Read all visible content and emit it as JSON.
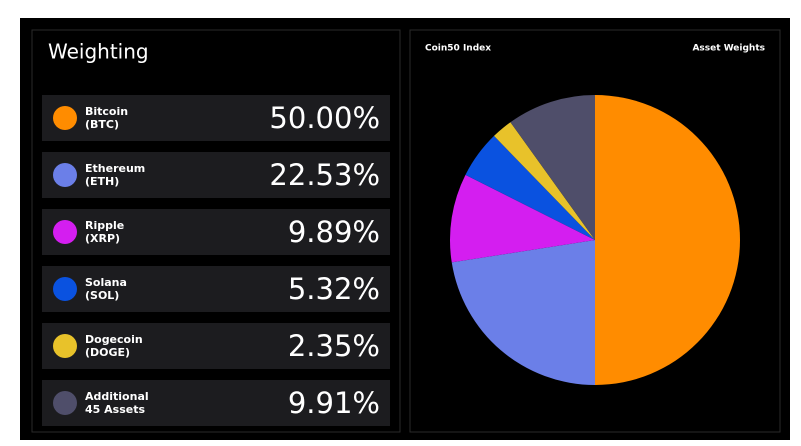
{
  "heading": "Weighting",
  "chart_data": {
    "type": "pie",
    "title": "Coin50 Index",
    "subtitle": "Asset Weights",
    "categories": [
      "Bitcoin",
      "Ethereum",
      "Ripple",
      "Solana",
      "Dogecoin",
      "Additional"
    ],
    "category_sublabels": [
      "(BTC)",
      "(ETH)",
      "(XRP)",
      "(SOL)",
      "(DOGE)",
      "45 Assets"
    ],
    "values": [
      50.0,
      22.53,
      9.89,
      5.32,
      2.35,
      9.91
    ],
    "value_labels": [
      "50.00%",
      "22.53%",
      "9.89%",
      "5.32%",
      "2.35%",
      "9.91%"
    ],
    "colors": [
      "#ff8c00",
      "#6b7fe8",
      "#d41ef0",
      "#0a52e0",
      "#e8c22a",
      "#4f4e6a"
    ]
  }
}
